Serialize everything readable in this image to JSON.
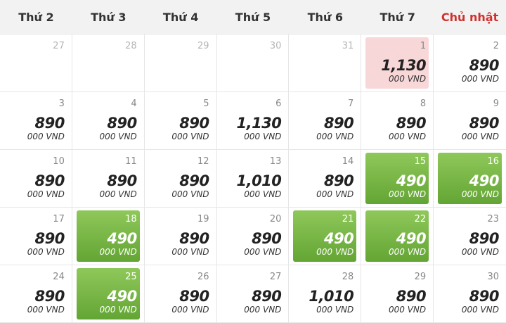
{
  "weekdays": [
    "Thứ 2",
    "Thứ 3",
    "Thứ 4",
    "Thứ 5",
    "Thứ 6",
    "Thứ 7",
    "Chủ nhật"
  ],
  "currency_unit": "000 VND",
  "colors": {
    "sunday": "#d0312d",
    "lowest_fare": "#73b33f",
    "selected": "#f8d7d8"
  },
  "days": [
    {
      "day": "27",
      "price": "",
      "state": "prev"
    },
    {
      "day": "28",
      "price": "",
      "state": "prev"
    },
    {
      "day": "29",
      "price": "",
      "state": "prev"
    },
    {
      "day": "30",
      "price": "",
      "state": "prev"
    },
    {
      "day": "31",
      "price": "",
      "state": "prev"
    },
    {
      "day": "1",
      "price": "1,130",
      "state": "highlight"
    },
    {
      "day": "2",
      "price": "890",
      "state": "normal"
    },
    {
      "day": "3",
      "price": "890",
      "state": "normal"
    },
    {
      "day": "4",
      "price": "890",
      "state": "normal"
    },
    {
      "day": "5",
      "price": "890",
      "state": "normal"
    },
    {
      "day": "6",
      "price": "1,130",
      "state": "normal"
    },
    {
      "day": "7",
      "price": "890",
      "state": "normal"
    },
    {
      "day": "8",
      "price": "890",
      "state": "normal"
    },
    {
      "day": "9",
      "price": "890",
      "state": "normal"
    },
    {
      "day": "10",
      "price": "890",
      "state": "normal"
    },
    {
      "day": "11",
      "price": "890",
      "state": "normal"
    },
    {
      "day": "12",
      "price": "890",
      "state": "normal"
    },
    {
      "day": "13",
      "price": "1,010",
      "state": "normal"
    },
    {
      "day": "14",
      "price": "890",
      "state": "normal"
    },
    {
      "day": "15",
      "price": "490",
      "state": "lowest"
    },
    {
      "day": "16",
      "price": "490",
      "state": "lowest"
    },
    {
      "day": "17",
      "price": "890",
      "state": "normal"
    },
    {
      "day": "18",
      "price": "490",
      "state": "lowest"
    },
    {
      "day": "19",
      "price": "890",
      "state": "normal"
    },
    {
      "day": "20",
      "price": "890",
      "state": "normal"
    },
    {
      "day": "21",
      "price": "490",
      "state": "lowest"
    },
    {
      "day": "22",
      "price": "490",
      "state": "lowest"
    },
    {
      "day": "23",
      "price": "890",
      "state": "normal"
    },
    {
      "day": "24",
      "price": "890",
      "state": "normal"
    },
    {
      "day": "25",
      "price": "490",
      "state": "lowest"
    },
    {
      "day": "26",
      "price": "890",
      "state": "normal"
    },
    {
      "day": "27",
      "price": "890",
      "state": "normal"
    },
    {
      "day": "28",
      "price": "1,010",
      "state": "normal"
    },
    {
      "day": "29",
      "price": "890",
      "state": "normal"
    },
    {
      "day": "30",
      "price": "890",
      "state": "normal"
    }
  ]
}
